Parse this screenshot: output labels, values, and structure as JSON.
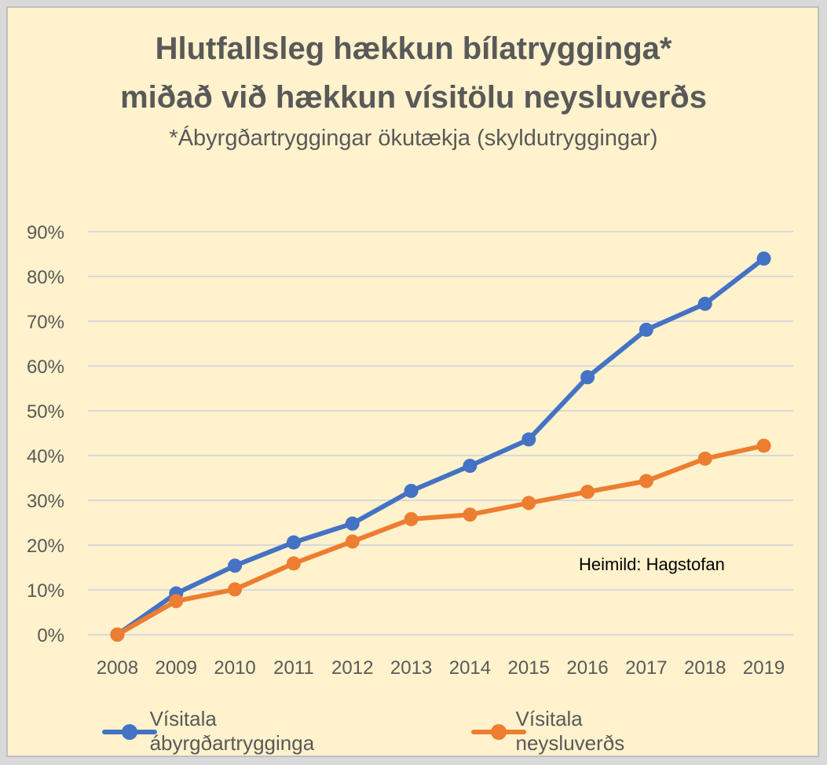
{
  "chart_data": {
    "type": "line",
    "title": "Hlutfallsleg hækkun bílatrygginga*",
    "title_line2": "miðað við hækkun vísitölu neysluverðs",
    "subtitle": "*Ábyrgðartryggingar ökutækja (skyldutryggingar)",
    "source": "Heimild: Hagstofan",
    "categories": [
      "2008",
      "2009",
      "2010",
      "2011",
      "2012",
      "2013",
      "2014",
      "2015",
      "2016",
      "2017",
      "2018",
      "2019"
    ],
    "series": [
      {
        "name": "Vísitala ábyrgðartrygginga",
        "color": "#4472c4",
        "values": [
          0,
          9.2,
          15.4,
          20.6,
          24.8,
          32.1,
          37.7,
          43.6,
          57.5,
          68.1,
          73.9,
          84.0
        ]
      },
      {
        "name": "Vísitala neysluverðs",
        "color": "#ed7d31",
        "values": [
          0,
          7.5,
          10.1,
          15.9,
          20.8,
          25.8,
          26.8,
          29.4,
          31.9,
          34.3,
          39.3,
          42.2
        ]
      }
    ],
    "ylim": [
      0,
      90
    ],
    "ytick_step": 10,
    "ytick_labels": [
      "0%",
      "10%",
      "20%",
      "30%",
      "40%",
      "50%",
      "60%",
      "70%",
      "80%",
      "90%"
    ],
    "grid": true,
    "legend": "bottom"
  }
}
